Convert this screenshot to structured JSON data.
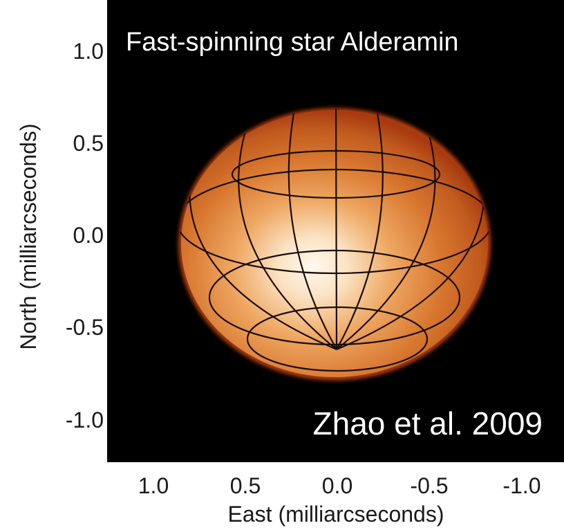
{
  "title": "Fast-spinning star Alderamin",
  "credit": "Zhao et al. 2009",
  "x_axis": {
    "label": "East (milliarcseconds)",
    "ticks": [
      "1.0",
      "0.5",
      "0.0",
      "-0.5",
      "-1.0"
    ]
  },
  "y_axis": {
    "label": "North (milliarcseconds)",
    "ticks": [
      "1.0",
      "0.5",
      "0.0",
      "-0.5",
      "-1.0"
    ]
  },
  "colors": {
    "background": "#000000",
    "star_limb": "#a83a10",
    "star_mid": "#d9772e",
    "star_core": "#fff6ea",
    "grid_lines": "#1a0d05",
    "text": "#ffffff"
  }
}
